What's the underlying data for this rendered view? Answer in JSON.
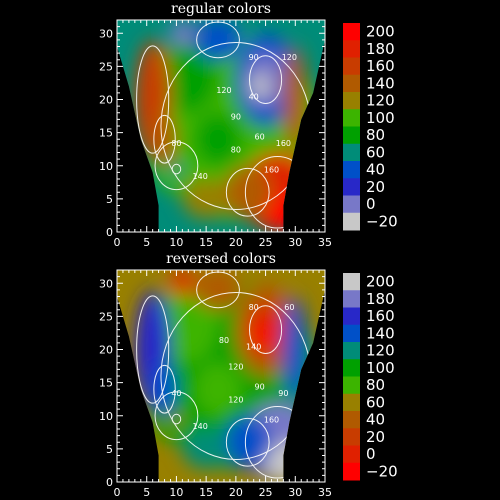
{
  "chart_data": [
    {
      "type": "heatmap",
      "title": "regular colors",
      "xlim": [
        0,
        35
      ],
      "ylim": [
        0,
        32
      ],
      "x_ticks": [
        "0",
        "5",
        "10",
        "15",
        "20",
        "25",
        "30",
        "35"
      ],
      "y_ticks": [
        "0",
        "5",
        "10",
        "15",
        "20",
        "25",
        "30"
      ],
      "colorbar": {
        "levels": [
          "200",
          "180",
          "160",
          "140",
          "120",
          "100",
          "80",
          "60",
          "40",
          "20",
          "0",
          "−20"
        ],
        "colors": [
          "#ff0000",
          "#e02000",
          "#c83c00",
          "#b05a00",
          "#988000",
          "#3cb400",
          "#00a000",
          "#008c78",
          "#0050c8",
          "#2828c8",
          "#7878c8",
          "#c8c8c8"
        ]
      },
      "contour_labels": [
        "80",
        "140",
        "120",
        "90",
        "80",
        "120",
        "160",
        "160",
        "90",
        "40",
        "60"
      ]
    },
    {
      "type": "heatmap",
      "title": "reversed colors",
      "xlim": [
        0,
        35
      ],
      "ylim": [
        0,
        32
      ],
      "x_ticks": [
        "0",
        "5",
        "10",
        "15",
        "20",
        "25",
        "30",
        "35"
      ],
      "y_ticks": [
        "0",
        "5",
        "10",
        "15",
        "20",
        "25",
        "30"
      ],
      "colorbar": {
        "levels": [
          "200",
          "180",
          "160",
          "140",
          "120",
          "100",
          "80",
          "60",
          "40",
          "20",
          "0",
          "−20"
        ],
        "colors": [
          "#c8c8c8",
          "#7878c8",
          "#2828c8",
          "#0050c8",
          "#008c78",
          "#00a000",
          "#3cb400",
          "#988000",
          "#b05a00",
          "#c83c00",
          "#e02000",
          "#ff0000"
        ]
      },
      "contour_labels": [
        "40",
        "140",
        "80",
        "80",
        "120",
        "60",
        "90",
        "160",
        "120",
        "140",
        "90"
      ]
    }
  ]
}
